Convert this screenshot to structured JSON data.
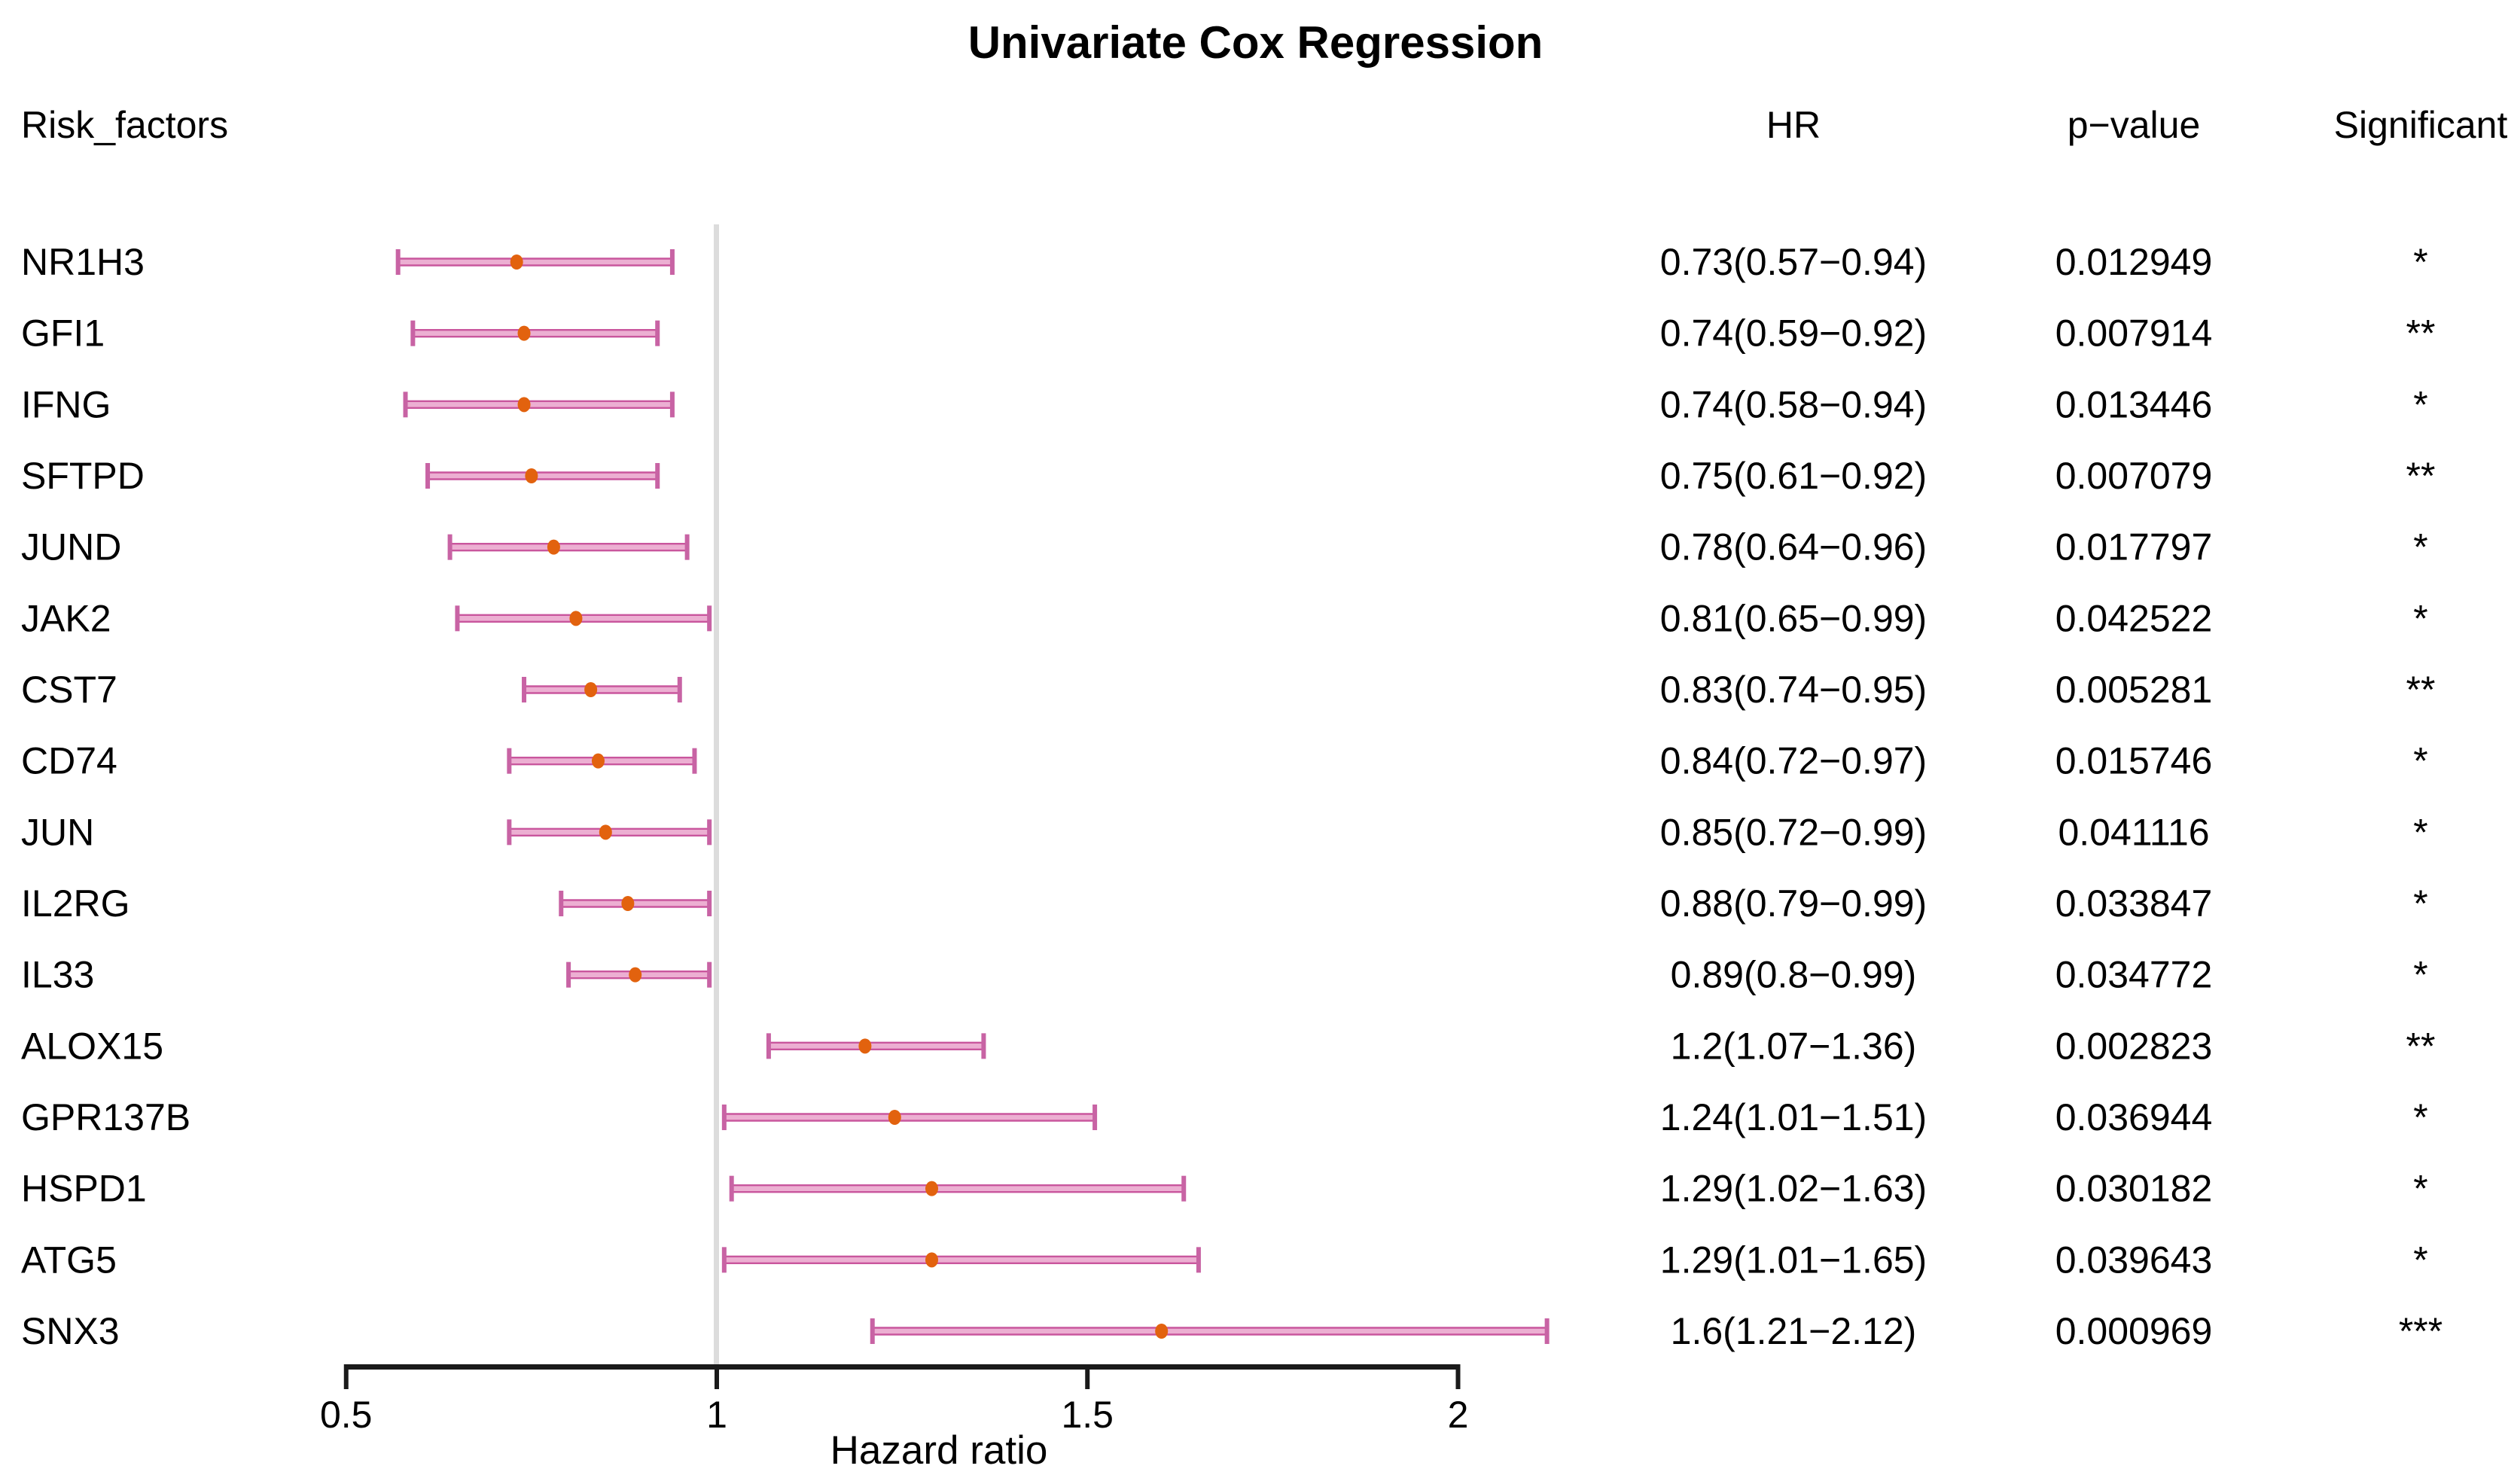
{
  "title": "Univariate Cox Regression",
  "chart_data": {
    "type": "forest",
    "title": "Univariate Cox Regression",
    "xlabel": "Hazard ratio",
    "columns": {
      "risk_factors": "Risk_factors",
      "hr": "HR",
      "p_value": "p−value",
      "significant": "Significant"
    },
    "x_axis": {
      "scale": "linear",
      "ticks": [
        0.5,
        1,
        1.5,
        2
      ],
      "tick_labels": [
        "0.5",
        "1",
        "1.5",
        "2"
      ],
      "range": [
        0.5,
        2.12
      ],
      "reference_line": 1
    },
    "legend": "none",
    "grid": "off",
    "rows": [
      {
        "risk_factor": "NR1H3",
        "hr": 0.73,
        "ci_low": 0.57,
        "ci_high": 0.94,
        "hr_label": "0.73(0.57−0.94)",
        "p_value": "0.012949",
        "significant": "*"
      },
      {
        "risk_factor": "GFI1",
        "hr": 0.74,
        "ci_low": 0.59,
        "ci_high": 0.92,
        "hr_label": "0.74(0.59−0.92)",
        "p_value": "0.007914",
        "significant": "**"
      },
      {
        "risk_factor": "IFNG",
        "hr": 0.74,
        "ci_low": 0.58,
        "ci_high": 0.94,
        "hr_label": "0.74(0.58−0.94)",
        "p_value": "0.013446",
        "significant": "*"
      },
      {
        "risk_factor": "SFTPD",
        "hr": 0.75,
        "ci_low": 0.61,
        "ci_high": 0.92,
        "hr_label": "0.75(0.61−0.92)",
        "p_value": "0.007079",
        "significant": "**"
      },
      {
        "risk_factor": "JUND",
        "hr": 0.78,
        "ci_low": 0.64,
        "ci_high": 0.96,
        "hr_label": "0.78(0.64−0.96)",
        "p_value": "0.017797",
        "significant": "*"
      },
      {
        "risk_factor": "JAK2",
        "hr": 0.81,
        "ci_low": 0.65,
        "ci_high": 0.99,
        "hr_label": "0.81(0.65−0.99)",
        "p_value": "0.042522",
        "significant": "*"
      },
      {
        "risk_factor": "CST7",
        "hr": 0.83,
        "ci_low": 0.74,
        "ci_high": 0.95,
        "hr_label": "0.83(0.74−0.95)",
        "p_value": "0.005281",
        "significant": "**"
      },
      {
        "risk_factor": "CD74",
        "hr": 0.84,
        "ci_low": 0.72,
        "ci_high": 0.97,
        "hr_label": "0.84(0.72−0.97)",
        "p_value": "0.015746",
        "significant": "*"
      },
      {
        "risk_factor": "JUN",
        "hr": 0.85,
        "ci_low": 0.72,
        "ci_high": 0.99,
        "hr_label": "0.85(0.72−0.99)",
        "p_value": "0.041116",
        "significant": "*"
      },
      {
        "risk_factor": "IL2RG",
        "hr": 0.88,
        "ci_low": 0.79,
        "ci_high": 0.99,
        "hr_label": "0.88(0.79−0.99)",
        "p_value": "0.033847",
        "significant": "*"
      },
      {
        "risk_factor": "IL33",
        "hr": 0.89,
        "ci_low": 0.8,
        "ci_high": 0.99,
        "hr_label": "0.89(0.8−0.99)",
        "p_value": "0.034772",
        "significant": "*"
      },
      {
        "risk_factor": "ALOX15",
        "hr": 1.2,
        "ci_low": 1.07,
        "ci_high": 1.36,
        "hr_label": "1.2(1.07−1.36)",
        "p_value": "0.002823",
        "significant": "**"
      },
      {
        "risk_factor": "GPR137B",
        "hr": 1.24,
        "ci_low": 1.01,
        "ci_high": 1.51,
        "hr_label": "1.24(1.01−1.51)",
        "p_value": "0.036944",
        "significant": "*"
      },
      {
        "risk_factor": "HSPD1",
        "hr": 1.29,
        "ci_low": 1.02,
        "ci_high": 1.63,
        "hr_label": "1.29(1.02−1.63)",
        "p_value": "0.030182",
        "significant": "*"
      },
      {
        "risk_factor": "ATG5",
        "hr": 1.29,
        "ci_low": 1.01,
        "ci_high": 1.65,
        "hr_label": "1.29(1.01−1.65)",
        "p_value": "0.039643",
        "significant": "*"
      },
      {
        "risk_factor": "SNX3",
        "hr": 1.6,
        "ci_low": 1.21,
        "ci_high": 2.12,
        "hr_label": "1.6(1.21−2.12)",
        "p_value": "0.000969",
        "significant": "***"
      }
    ],
    "colors": {
      "ci_bar_fill": "#ECAFD2",
      "ci_bar_edge": "#C9569D",
      "ci_whisker": "#C863A4",
      "point": "#E2620E",
      "reference_line": "#DCDCDC",
      "axis": "#1A1A1A",
      "text": "#000000"
    }
  }
}
